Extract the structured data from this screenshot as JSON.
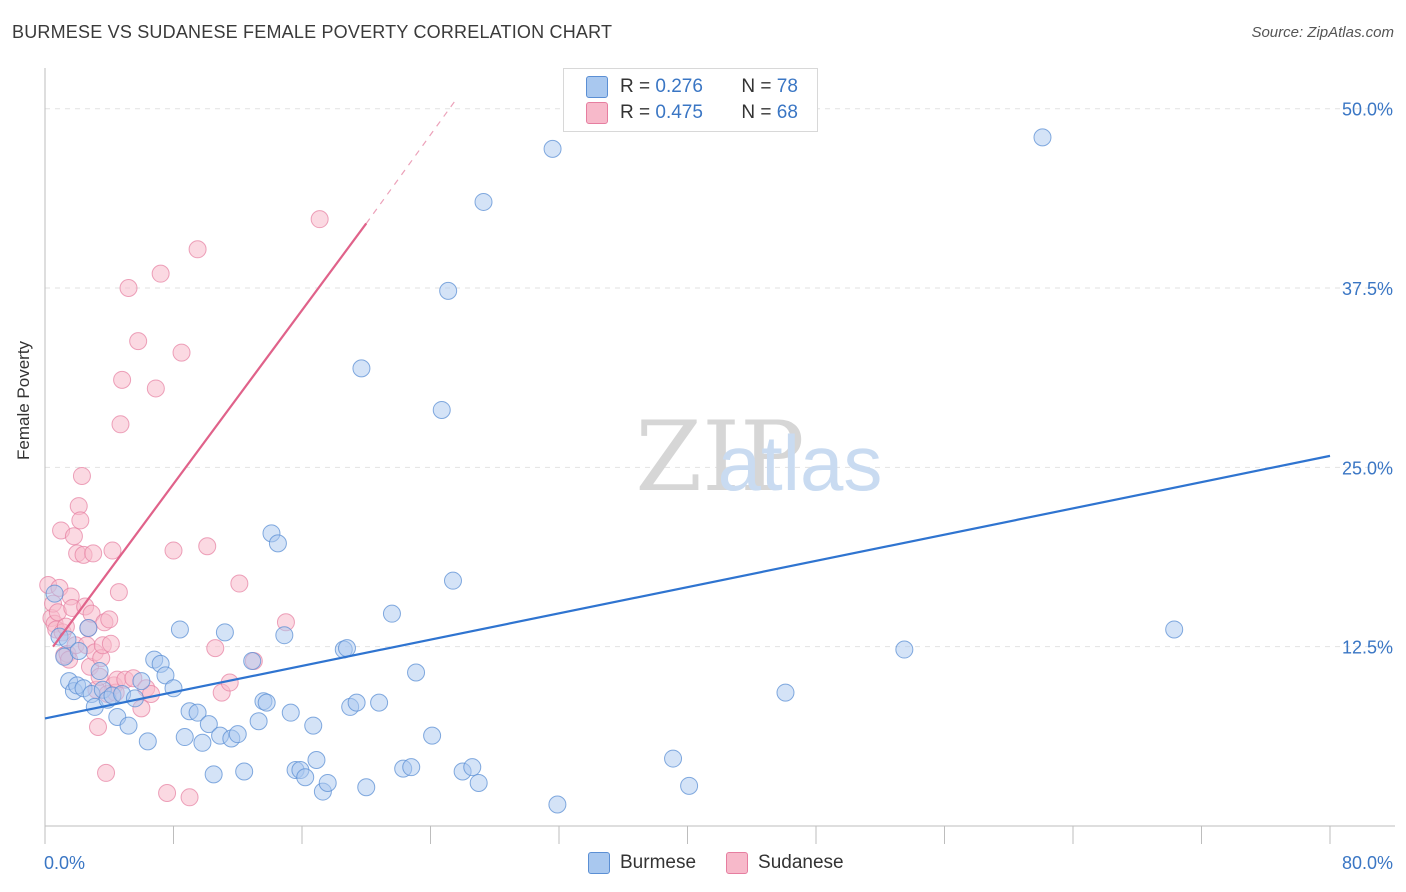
{
  "title": "BURMESE VS SUDANESE FEMALE POVERTY CORRELATION CHART",
  "source": "Source: ZipAtlas.com",
  "colors": {
    "burmese_fill": "#a9c8ef",
    "burmese_stroke": "#5b8fd4",
    "burmese_line": "#2f74d0",
    "sudanese_fill": "#f7b9ca",
    "sudanese_stroke": "#e67ea0",
    "sudanese_line": "#e0628a",
    "axis_text": "#3a76c4"
  },
  "legend": {
    "burmese": {
      "r_label": "R =",
      "r_value": "0.276",
      "n_label": "N =",
      "n_value": "78"
    },
    "sudanese": {
      "r_label": "R =",
      "r_value": "0.475",
      "n_label": "N =",
      "n_value": "68"
    }
  },
  "bottom_legend": {
    "burmese": "Burmese",
    "sudanese": "Sudanese"
  },
  "chart_data": {
    "type": "scatter",
    "xlabel": "",
    "ylabel": "Female Poverty",
    "xlim": [
      0,
      80
    ],
    "ylim": [
      0,
      52
    ],
    "x_tick_labels": [
      "0.0%",
      "80.0%"
    ],
    "y_ticks": [
      12.5,
      25.0,
      37.5,
      50.0
    ],
    "y_tick_labels": [
      "12.5%",
      "25.0%",
      "37.5%",
      "50.0%"
    ],
    "grid": "horizontal dashed",
    "legend_position": "top-center",
    "watermark": "ZIPatlas",
    "series": [
      {
        "name": "Burmese",
        "trend": {
          "x": [
            0,
            80
          ],
          "y": [
            7.5,
            25.8
          ]
        },
        "points": [
          [
            0.6,
            16.2
          ],
          [
            0.9,
            13.2
          ],
          [
            1.2,
            11.8
          ],
          [
            1.4,
            13.0
          ],
          [
            1.5,
            10.1
          ],
          [
            1.8,
            9.4
          ],
          [
            2.0,
            9.8
          ],
          [
            2.1,
            12.2
          ],
          [
            2.4,
            9.6
          ],
          [
            2.7,
            13.8
          ],
          [
            2.9,
            9.2
          ],
          [
            3.1,
            8.3
          ],
          [
            3.4,
            10.8
          ],
          [
            3.6,
            9.5
          ],
          [
            3.9,
            8.8
          ],
          [
            4.2,
            9.1
          ],
          [
            4.5,
            7.6
          ],
          [
            4.8,
            9.2
          ],
          [
            5.2,
            7.0
          ],
          [
            5.6,
            8.9
          ],
          [
            6.0,
            10.1
          ],
          [
            6.4,
            5.9
          ],
          [
            6.8,
            11.6
          ],
          [
            7.2,
            11.3
          ],
          [
            7.5,
            10.5
          ],
          [
            8.0,
            9.6
          ],
          [
            8.4,
            13.7
          ],
          [
            8.7,
            6.2
          ],
          [
            9.0,
            8.0
          ],
          [
            9.5,
            7.9
          ],
          [
            9.8,
            5.8
          ],
          [
            10.2,
            7.1
          ],
          [
            10.5,
            3.6
          ],
          [
            10.9,
            6.3
          ],
          [
            11.2,
            13.5
          ],
          [
            11.6,
            6.1
          ],
          [
            12.0,
            6.4
          ],
          [
            12.4,
            3.8
          ],
          [
            12.9,
            11.5
          ],
          [
            13.3,
            7.3
          ],
          [
            13.6,
            8.7
          ],
          [
            13.8,
            8.6
          ],
          [
            14.1,
            20.4
          ],
          [
            14.5,
            19.7
          ],
          [
            14.9,
            13.3
          ],
          [
            15.3,
            7.9
          ],
          [
            15.6,
            3.9
          ],
          [
            15.9,
            3.9
          ],
          [
            16.2,
            3.4
          ],
          [
            16.7,
            7.0
          ],
          [
            16.9,
            4.6
          ],
          [
            17.3,
            2.4
          ],
          [
            17.6,
            3.0
          ],
          [
            18.6,
            12.3
          ],
          [
            18.8,
            12.4
          ],
          [
            19.0,
            8.3
          ],
          [
            19.4,
            8.6
          ],
          [
            19.7,
            31.9
          ],
          [
            20.0,
            2.7
          ],
          [
            20.8,
            8.6
          ],
          [
            21.6,
            14.8
          ],
          [
            22.3,
            4.0
          ],
          [
            22.8,
            4.1
          ],
          [
            23.1,
            10.7
          ],
          [
            24.1,
            6.3
          ],
          [
            24.7,
            29.0
          ],
          [
            25.1,
            37.3
          ],
          [
            25.4,
            17.1
          ],
          [
            26.0,
            3.8
          ],
          [
            26.6,
            4.1
          ],
          [
            27.0,
            3.0
          ],
          [
            27.3,
            43.5
          ],
          [
            31.6,
            47.2
          ],
          [
            31.9,
            1.5
          ],
          [
            39.1,
            4.7
          ],
          [
            40.1,
            2.8
          ],
          [
            46.1,
            9.3
          ],
          [
            53.5,
            12.3
          ],
          [
            62.1,
            48.0
          ],
          [
            70.3,
            13.7
          ]
        ]
      },
      {
        "name": "Sudanese",
        "trend": {
          "x": [
            0.5,
            20
          ],
          "y": [
            12.5,
            42.0
          ],
          "dashed_extension": {
            "x": [
              20,
              25.5
            ],
            "y": [
              42.0,
              50.5
            ]
          }
        },
        "points": [
          [
            0.2,
            16.8
          ],
          [
            0.4,
            14.5
          ],
          [
            0.5,
            15.5
          ],
          [
            0.6,
            14.1
          ],
          [
            0.7,
            13.7
          ],
          [
            0.8,
            14.9
          ],
          [
            0.9,
            16.6
          ],
          [
            1.0,
            20.6
          ],
          [
            1.1,
            13.5
          ],
          [
            1.2,
            11.9
          ],
          [
            1.3,
            13.9
          ],
          [
            1.4,
            12.0
          ],
          [
            1.5,
            11.6
          ],
          [
            1.6,
            16.0
          ],
          [
            1.7,
            15.2
          ],
          [
            1.8,
            20.2
          ],
          [
            1.9,
            12.6
          ],
          [
            2.0,
            19.0
          ],
          [
            2.1,
            22.3
          ],
          [
            2.2,
            21.3
          ],
          [
            2.3,
            24.4
          ],
          [
            2.4,
            18.9
          ],
          [
            2.5,
            15.3
          ],
          [
            2.6,
            12.6
          ],
          [
            2.7,
            13.8
          ],
          [
            2.8,
            11.1
          ],
          [
            2.9,
            14.8
          ],
          [
            3.0,
            19.0
          ],
          [
            3.1,
            12.1
          ],
          [
            3.2,
            9.5
          ],
          [
            3.3,
            6.9
          ],
          [
            3.4,
            10.4
          ],
          [
            3.5,
            11.7
          ],
          [
            3.6,
            12.6
          ],
          [
            3.7,
            14.2
          ],
          [
            3.8,
            3.7
          ],
          [
            3.9,
            9.2
          ],
          [
            4.0,
            14.4
          ],
          [
            4.1,
            12.7
          ],
          [
            4.2,
            19.2
          ],
          [
            4.3,
            9.8
          ],
          [
            4.4,
            9.3
          ],
          [
            4.5,
            10.2
          ],
          [
            4.6,
            16.3
          ],
          [
            4.7,
            28.0
          ],
          [
            4.8,
            31.1
          ],
          [
            5.0,
            10.2
          ],
          [
            5.2,
            37.5
          ],
          [
            5.5,
            10.3
          ],
          [
            5.8,
            33.8
          ],
          [
            6.0,
            8.2
          ],
          [
            6.3,
            9.6
          ],
          [
            6.6,
            9.2
          ],
          [
            6.9,
            30.5
          ],
          [
            7.2,
            38.5
          ],
          [
            7.6,
            2.3
          ],
          [
            8.0,
            19.2
          ],
          [
            8.5,
            33.0
          ],
          [
            9.0,
            2.0
          ],
          [
            9.5,
            40.2
          ],
          [
            10.1,
            19.5
          ],
          [
            10.6,
            12.4
          ],
          [
            11.0,
            9.3
          ],
          [
            11.5,
            10.0
          ],
          [
            12.1,
            16.9
          ],
          [
            13.0,
            11.5
          ],
          [
            15.0,
            14.2
          ],
          [
            17.1,
            42.3
          ]
        ]
      }
    ]
  }
}
